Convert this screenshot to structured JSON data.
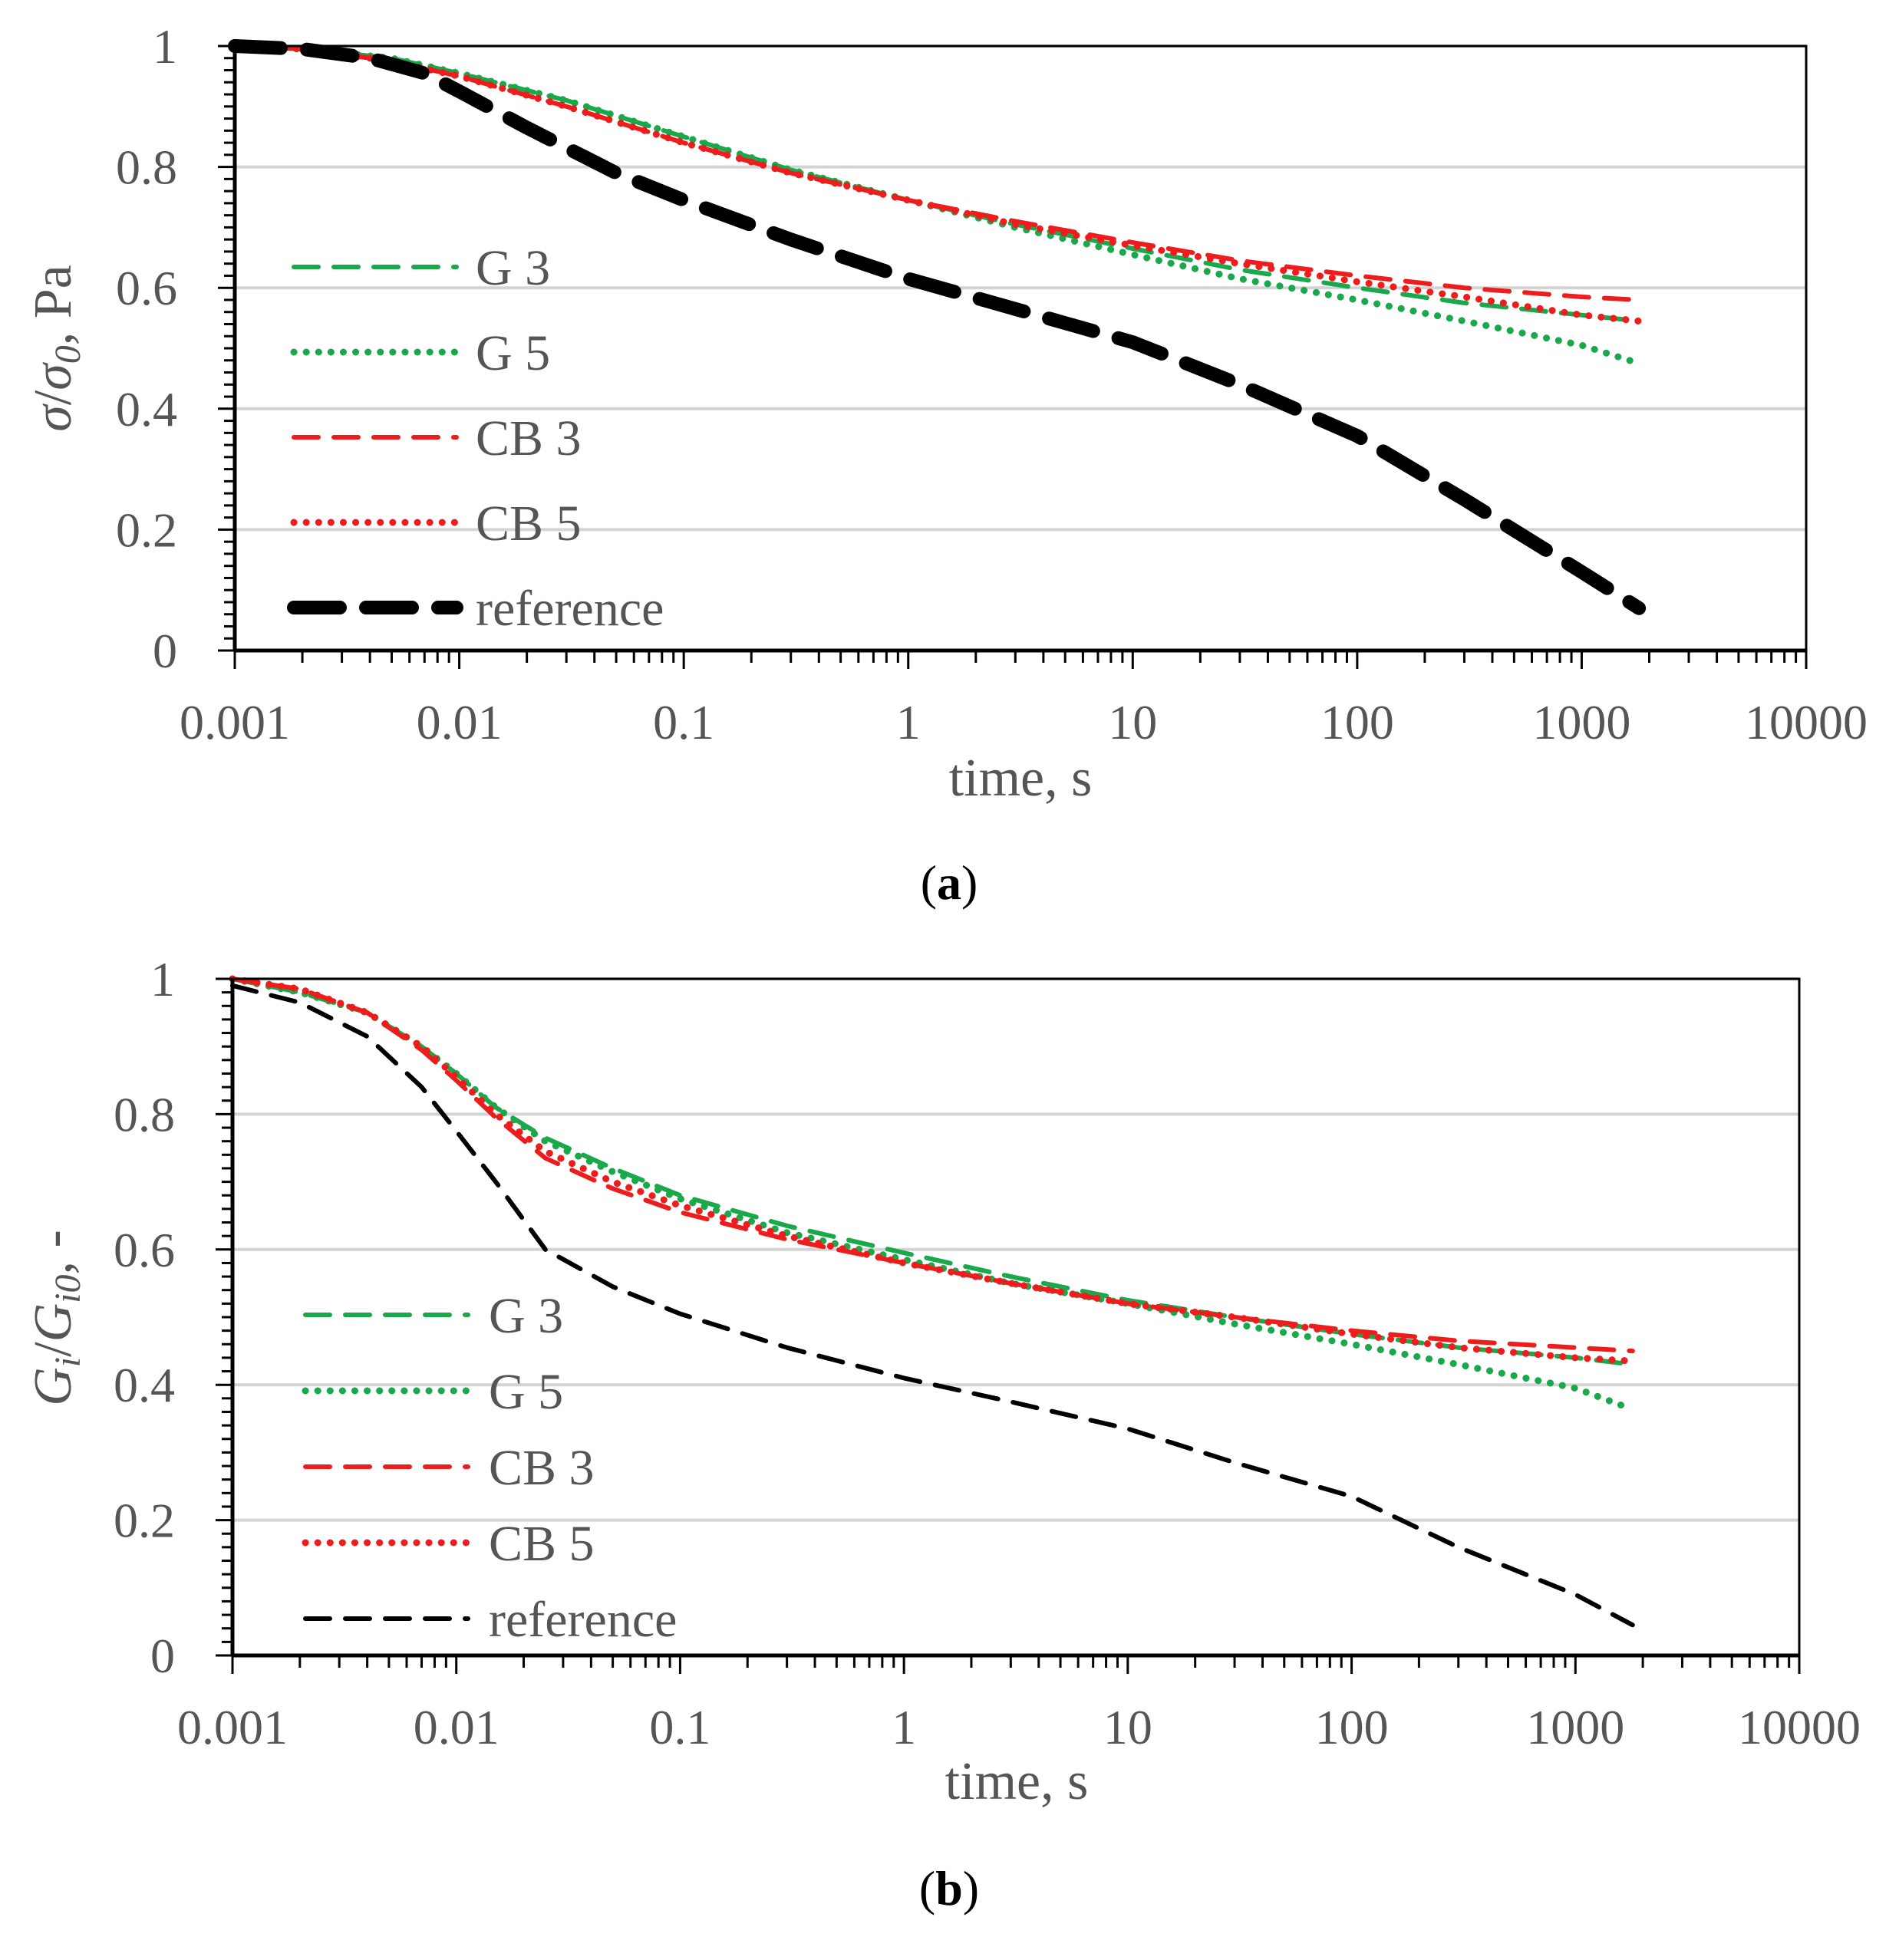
{
  "chart_data": [
    {
      "type": "line",
      "panel": "a",
      "caption_letter": "a",
      "xscale": "log",
      "xlim": [
        0.001,
        10000
      ],
      "ylim": [
        0,
        1
      ],
      "x_ticks": [
        {
          "value": 0.001,
          "label": "0.001"
        },
        {
          "value": 0.01,
          "label": "0.01"
        },
        {
          "value": 0.1,
          "label": "0.1"
        },
        {
          "value": 1,
          "label": "1"
        },
        {
          "value": 10,
          "label": "10"
        },
        {
          "value": 100,
          "label": "100"
        },
        {
          "value": 1000,
          "label": "1000"
        },
        {
          "value": 10000,
          "label": "10000"
        }
      ],
      "y_ticks": [
        {
          "value": 0,
          "label": "0"
        },
        {
          "value": 0.2,
          "label": "0.2"
        },
        {
          "value": 0.4,
          "label": "0.4"
        },
        {
          "value": 0.6,
          "label": "0.6"
        },
        {
          "value": 0.8,
          "label": "0.8"
        },
        {
          "value": 1,
          "label": "1"
        }
      ],
      "xlabel": "time, s",
      "ylabel": "σ/σ0, Pa",
      "ylabel_parts": {
        "sym1": "σ",
        "slash": "/",
        "sym2": "σ",
        "sub": "0",
        "rest": ", Pa"
      },
      "grid": "horizontal",
      "legend_position": "left",
      "series": [
        {
          "name": "G 3",
          "color": "#1aa84a",
          "style": "dashed",
          "weight": "normal",
          "x": [
            0.001,
            0.002,
            0.005,
            0.01,
            0.03,
            0.1,
            0.3,
            1,
            3,
            10,
            30,
            100,
            300,
            1000,
            1800
          ],
          "y": [
            1.0,
            0.995,
            0.98,
            0.955,
            0.91,
            0.85,
            0.795,
            0.745,
            0.705,
            0.665,
            0.63,
            0.6,
            0.575,
            0.555,
            0.545
          ]
        },
        {
          "name": "G 5",
          "color": "#1aa84a",
          "style": "dotted",
          "weight": "normal",
          "x": [
            0.001,
            0.002,
            0.005,
            0.01,
            0.03,
            0.1,
            0.3,
            1,
            3,
            10,
            30,
            100,
            300,
            1000,
            1800
          ],
          "y": [
            1.0,
            0.995,
            0.98,
            0.955,
            0.91,
            0.85,
            0.795,
            0.745,
            0.7,
            0.655,
            0.615,
            0.58,
            0.545,
            0.505,
            0.475
          ]
        },
        {
          "name": "CB 3",
          "color": "#ee1c1c",
          "style": "dashed",
          "weight": "normal",
          "x": [
            0.001,
            0.002,
            0.005,
            0.01,
            0.03,
            0.1,
            0.3,
            1,
            3,
            10,
            30,
            100,
            300,
            1000,
            1800
          ],
          "y": [
            1.0,
            0.995,
            0.975,
            0.95,
            0.9,
            0.84,
            0.79,
            0.745,
            0.71,
            0.675,
            0.645,
            0.62,
            0.6,
            0.585,
            0.58
          ]
        },
        {
          "name": "CB 5",
          "color": "#ee1c1c",
          "style": "dotted",
          "weight": "normal",
          "x": [
            0.001,
            0.002,
            0.005,
            0.01,
            0.03,
            0.1,
            0.3,
            1,
            3,
            10,
            30,
            100,
            300,
            1000,
            1800
          ],
          "y": [
            1.0,
            0.995,
            0.975,
            0.95,
            0.9,
            0.84,
            0.79,
            0.745,
            0.705,
            0.67,
            0.64,
            0.61,
            0.585,
            0.555,
            0.545
          ]
        },
        {
          "name": "reference",
          "color": "#000000",
          "style": "dashed",
          "weight": "bold",
          "x": [
            0.001,
            0.002,
            0.004,
            0.007,
            0.01,
            0.02,
            0.05,
            0.1,
            0.3,
            1,
            3,
            10,
            30,
            100,
            300,
            1000,
            1800
          ],
          "y": [
            1.0,
            0.995,
            0.98,
            0.955,
            0.925,
            0.865,
            0.79,
            0.745,
            0.68,
            0.615,
            0.565,
            0.51,
            0.44,
            0.355,
            0.25,
            0.13,
            0.07
          ]
        }
      ]
    },
    {
      "type": "line",
      "panel": "b",
      "caption_letter": "b",
      "xscale": "log",
      "xlim": [
        0.001,
        10000
      ],
      "ylim": [
        0,
        1
      ],
      "x_ticks": [
        {
          "value": 0.001,
          "label": "0.001"
        },
        {
          "value": 0.01,
          "label": "0.01"
        },
        {
          "value": 0.1,
          "label": "0.1"
        },
        {
          "value": 1,
          "label": "1"
        },
        {
          "value": 10,
          "label": "10"
        },
        {
          "value": 100,
          "label": "100"
        },
        {
          "value": 1000,
          "label": "1000"
        },
        {
          "value": 10000,
          "label": "10000"
        }
      ],
      "y_ticks": [
        {
          "value": 0,
          "label": "0"
        },
        {
          "value": 0.2,
          "label": "0.2"
        },
        {
          "value": 0.4,
          "label": "0.4"
        },
        {
          "value": 0.6,
          "label": "0.6"
        },
        {
          "value": 0.8,
          "label": "0.8"
        },
        {
          "value": 1,
          "label": "1"
        }
      ],
      "xlabel": "time, s",
      "ylabel": "Gi/Gi0, -",
      "ylabel_parts": {
        "sym1": "G",
        "sub1": "i",
        "slash": "/",
        "sym2": "G",
        "sub2": "i0",
        "rest": ", -"
      },
      "grid": "horizontal",
      "legend_position": "left",
      "series": [
        {
          "name": "G 3",
          "color": "#1aa84a",
          "style": "dashed",
          "weight": "normal",
          "x": [
            0.001,
            0.002,
            0.004,
            0.007,
            0.01,
            0.015,
            0.025,
            0.05,
            0.1,
            0.3,
            1,
            3,
            10,
            30,
            100,
            300,
            1000,
            1800
          ],
          "y": [
            1.0,
            0.98,
            0.95,
            0.9,
            0.86,
            0.81,
            0.765,
            0.72,
            0.68,
            0.635,
            0.595,
            0.56,
            0.525,
            0.5,
            0.475,
            0.455,
            0.44,
            0.43
          ]
        },
        {
          "name": "G 5",
          "color": "#1aa84a",
          "style": "dotted",
          "weight": "normal",
          "x": [
            0.001,
            0.002,
            0.004,
            0.007,
            0.01,
            0.015,
            0.025,
            0.05,
            0.1,
            0.3,
            1,
            3,
            10,
            30,
            100,
            300,
            1000,
            1600
          ],
          "y": [
            1.0,
            0.98,
            0.95,
            0.9,
            0.86,
            0.81,
            0.76,
            0.715,
            0.675,
            0.625,
            0.585,
            0.55,
            0.52,
            0.49,
            0.46,
            0.43,
            0.395,
            0.37
          ]
        },
        {
          "name": "CB 3",
          "color": "#ee1c1c",
          "style": "dashed",
          "weight": "normal",
          "x": [
            0.001,
            0.002,
            0.004,
            0.007,
            0.01,
            0.015,
            0.025,
            0.05,
            0.1,
            0.3,
            1,
            3,
            10,
            30,
            100,
            300,
            1000,
            1800
          ],
          "y": [
            1.0,
            0.985,
            0.95,
            0.895,
            0.85,
            0.795,
            0.735,
            0.69,
            0.655,
            0.615,
            0.58,
            0.55,
            0.52,
            0.5,
            0.48,
            0.465,
            0.455,
            0.45
          ]
        },
        {
          "name": "CB 5",
          "color": "#ee1c1c",
          "style": "dotted",
          "weight": "normal",
          "x": [
            0.001,
            0.002,
            0.004,
            0.007,
            0.01,
            0.015,
            0.025,
            0.05,
            0.1,
            0.3,
            1,
            3,
            10,
            30,
            100,
            300,
            1000,
            1800
          ],
          "y": [
            1.0,
            0.985,
            0.95,
            0.9,
            0.855,
            0.8,
            0.745,
            0.7,
            0.665,
            0.62,
            0.58,
            0.55,
            0.52,
            0.5,
            0.475,
            0.455,
            0.44,
            0.435
          ]
        },
        {
          "name": "reference",
          "color": "#000000",
          "style": "dashed",
          "weight": "normal",
          "x": [
            0.001,
            0.002,
            0.004,
            0.007,
            0.01,
            0.015,
            0.025,
            0.05,
            0.1,
            0.3,
            1,
            3,
            10,
            30,
            100,
            300,
            1000,
            1800
          ],
          "y": [
            0.99,
            0.965,
            0.915,
            0.84,
            0.775,
            0.7,
            0.6,
            0.545,
            0.505,
            0.455,
            0.41,
            0.375,
            0.335,
            0.285,
            0.235,
            0.16,
            0.09,
            0.045
          ]
        }
      ]
    }
  ]
}
